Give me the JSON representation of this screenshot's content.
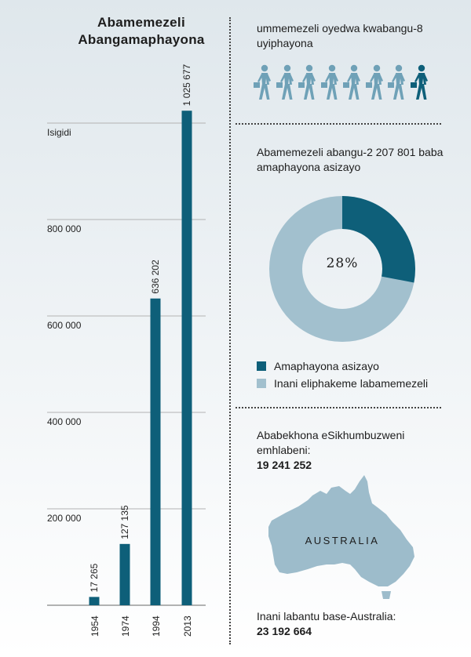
{
  "chart_data": {
    "type": "bar",
    "title_lines": [
      "Abamemezeli",
      "Abangamaphayona"
    ],
    "ylabel": "Isigidi",
    "categories": [
      "1954",
      "1974",
      "1994",
      "2013"
    ],
    "values": [
      17265,
      127135,
      636202,
      1025677
    ],
    "value_labels": [
      "17 265",
      "127 135",
      "636 202",
      "1 025 677"
    ],
    "yticks": [
      200000,
      400000,
      600000,
      800000
    ],
    "ytick_labels": [
      "200 000",
      "400 000",
      "600 000",
      "800 000"
    ],
    "ylim": [
      0,
      1000000
    ],
    "grid": true,
    "bar_color": "#0e5f79"
  },
  "pioneers_ratio": {
    "text": "ummemezeli oyedwa kwabangu-8 uyiphayona",
    "people_total": 8,
    "people_highlighted": 1,
    "light_color": "#6fa1b7",
    "dark_color": "#0e5f79"
  },
  "donut": {
    "heading": "Abamemezeli abangu-2 207 801 baba amaphayona asizayo",
    "percent": 28,
    "percent_label": "28%",
    "dark_color": "#0e5f79",
    "light_color": "#a2c0ce",
    "legend": [
      {
        "label": "Amaphayona asizayo",
        "color": "#0e5f79"
      },
      {
        "label": "Inani eliphakeme labamemezeli",
        "color": "#a2c0ce"
      }
    ]
  },
  "memorial": {
    "line1": "Ababekhona eSikhumbuzweni",
    "line2": "emhlabeni:",
    "number": "19 241 252"
  },
  "map": {
    "label": "AUSTRALIA",
    "color": "#9dbccb"
  },
  "population": {
    "label": "Inani labantu base-Australia:",
    "number": "23 192 664"
  }
}
